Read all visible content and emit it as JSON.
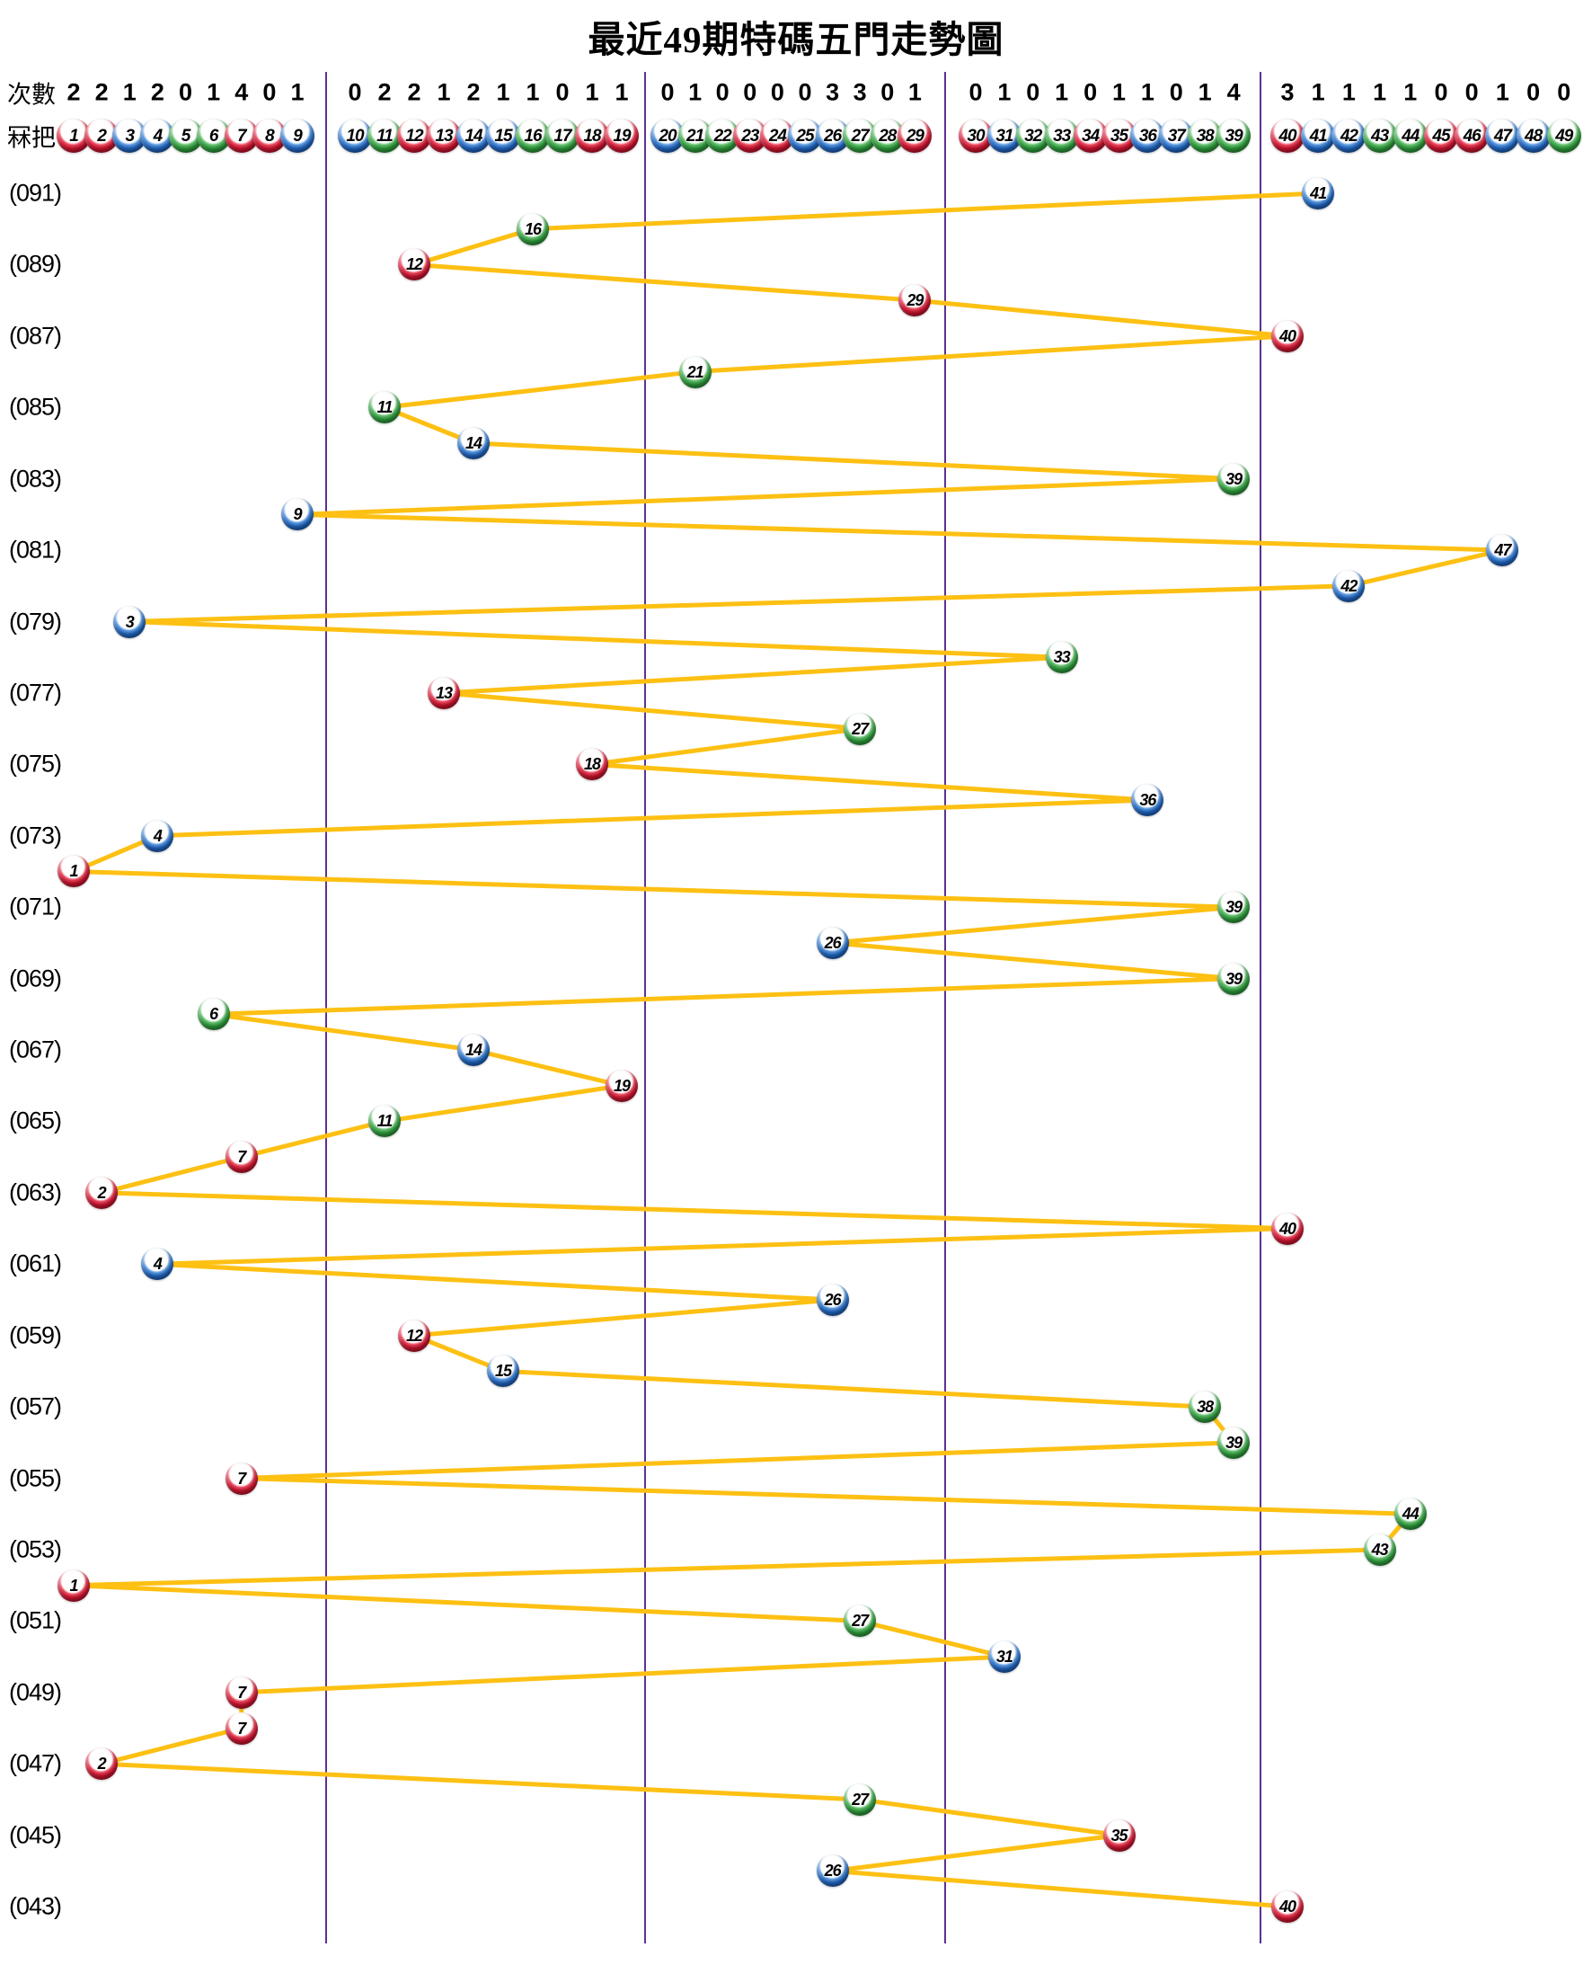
{
  "title": "最近49期特碼五門走勢圖",
  "header": {
    "counts_label": "次數",
    "balls_label": "冧把",
    "ball_numbers": [
      1,
      2,
      3,
      4,
      5,
      6,
      7,
      8,
      9,
      10,
      11,
      12,
      13,
      14,
      15,
      16,
      17,
      18,
      19,
      20,
      21,
      22,
      23,
      24,
      25,
      26,
      27,
      28,
      29,
      30,
      31,
      32,
      33,
      34,
      35,
      36,
      37,
      38,
      39,
      40,
      41,
      42,
      43,
      44,
      45,
      46,
      47,
      48,
      49
    ],
    "counts": [
      2,
      2,
      1,
      2,
      0,
      1,
      4,
      0,
      1,
      0,
      2,
      2,
      1,
      2,
      1,
      1,
      0,
      1,
      1,
      0,
      1,
      0,
      0,
      0,
      0,
      3,
      3,
      0,
      1,
      0,
      1,
      0,
      1,
      0,
      1,
      1,
      0,
      1,
      4,
      3,
      1,
      1,
      1,
      1,
      0,
      0,
      1,
      0,
      0
    ]
  },
  "colors": {
    "trend_line": "#FDC013",
    "divider": "#5C3192",
    "ball_red": "#CF1430",
    "ball_blue": "#2268C4",
    "ball_green": "#2F9E3D"
  },
  "chart_data": {
    "type": "line",
    "title": "最近49期特碼五門走勢圖",
    "xlabel": "ball numbers 1-49 in five door groups (1-9, 10-19, 20-29, 30-39, 40-49)",
    "ylabel": "draw period, (091) at top descending to (043) at bottom",
    "legend_position": "none",
    "grid": "vertical purple dividers after balls 9, 19, 29, 39",
    "divider_after_balls": [
      9,
      19,
      29,
      39
    ],
    "ball_color_groups": {
      "red": [
        1,
        2,
        7,
        8,
        12,
        13,
        18,
        19,
        23,
        24,
        29,
        30,
        34,
        35,
        40,
        45,
        46
      ],
      "blue": [
        3,
        4,
        9,
        10,
        14,
        15,
        20,
        25,
        26,
        31,
        36,
        37,
        41,
        42,
        47,
        48
      ],
      "green": [
        5,
        6,
        11,
        16,
        17,
        21,
        22,
        27,
        28,
        32,
        33,
        38,
        39,
        43,
        44,
        49
      ]
    },
    "periods": [
      {
        "label": "(091)",
        "ball": 41
      },
      {
        "label": "",
        "ball": 16
      },
      {
        "label": "(089)",
        "ball": 12
      },
      {
        "label": "",
        "ball": 29
      },
      {
        "label": "(087)",
        "ball": 40
      },
      {
        "label": "",
        "ball": 21
      },
      {
        "label": "(085)",
        "ball": 11
      },
      {
        "label": "",
        "ball": 14
      },
      {
        "label": "(083)",
        "ball": 39
      },
      {
        "label": "",
        "ball": 9
      },
      {
        "label": "(081)",
        "ball": 47
      },
      {
        "label": "",
        "ball": 42
      },
      {
        "label": "(079)",
        "ball": 3
      },
      {
        "label": "",
        "ball": 33
      },
      {
        "label": "(077)",
        "ball": 13
      },
      {
        "label": "",
        "ball": 27
      },
      {
        "label": "(075)",
        "ball": 18
      },
      {
        "label": "",
        "ball": 36
      },
      {
        "label": "(073)",
        "ball": 4
      },
      {
        "label": "",
        "ball": 1
      },
      {
        "label": "(071)",
        "ball": 39
      },
      {
        "label": "",
        "ball": 26
      },
      {
        "label": "(069)",
        "ball": 39
      },
      {
        "label": "",
        "ball": 6
      },
      {
        "label": "(067)",
        "ball": 14
      },
      {
        "label": "",
        "ball": 19
      },
      {
        "label": "(065)",
        "ball": 11
      },
      {
        "label": "",
        "ball": 7
      },
      {
        "label": "(063)",
        "ball": 2
      },
      {
        "label": "",
        "ball": 40
      },
      {
        "label": "(061)",
        "ball": 4
      },
      {
        "label": "",
        "ball": 26
      },
      {
        "label": "(059)",
        "ball": 12
      },
      {
        "label": "",
        "ball": 15
      },
      {
        "label": "(057)",
        "ball": 38
      },
      {
        "label": "",
        "ball": 39
      },
      {
        "label": "(055)",
        "ball": 7
      },
      {
        "label": "",
        "ball": 44
      },
      {
        "label": "(053)",
        "ball": 43
      },
      {
        "label": "",
        "ball": 1
      },
      {
        "label": "(051)",
        "ball": 27
      },
      {
        "label": "",
        "ball": 31
      },
      {
        "label": "(049)",
        "ball": 7
      },
      {
        "label": "",
        "ball": 7
      },
      {
        "label": "(047)",
        "ball": 2
      },
      {
        "label": "",
        "ball": 27
      },
      {
        "label": "(045)",
        "ball": 35
      },
      {
        "label": "",
        "ball": 26
      },
      {
        "label": "(043)",
        "ball": 40
      }
    ]
  }
}
